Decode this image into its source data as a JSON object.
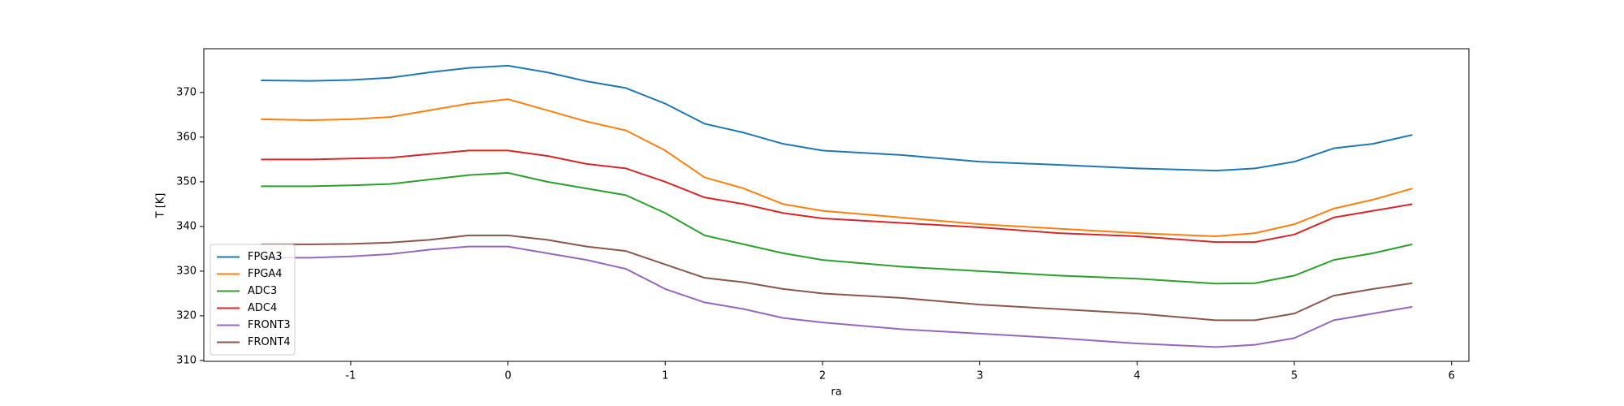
{
  "chart_data": {
    "type": "line",
    "xlabel": "ra",
    "ylabel": "T [K]",
    "x": [
      -1.57,
      -1.25,
      -1,
      -0.75,
      -0.5,
      -0.25,
      0,
      0.25,
      0.5,
      0.75,
      1,
      1.25,
      1.5,
      1.75,
      2,
      2.5,
      3,
      3.5,
      4,
      4.5,
      4.75,
      5,
      5.25,
      5.5,
      5.75
    ],
    "series": [
      {
        "name": "FPGA3",
        "color": "#1f77b4",
        "values": [
          372.7,
          372.6,
          372.8,
          373.3,
          374.5,
          375.5,
          376,
          374.5,
          372.5,
          371,
          367.5,
          363,
          361,
          358.5,
          357,
          356,
          354.5,
          353.8,
          353,
          352.5,
          353,
          354.5,
          357.5,
          358.5,
          360.5
        ]
      },
      {
        "name": "FPGA4",
        "color": "#ff7f0e",
        "values": [
          364,
          363.8,
          364,
          364.5,
          366,
          367.5,
          368.5,
          366,
          363.5,
          361.5,
          357,
          351,
          348.5,
          345,
          343.5,
          342,
          340.5,
          339.5,
          338.5,
          337.8,
          338.5,
          340.5,
          344,
          346,
          348.5
        ]
      },
      {
        "name": "ADC3",
        "color": "#2ca02c",
        "values": [
          349,
          349,
          349.2,
          349.5,
          350.5,
          351.5,
          352,
          350,
          348.5,
          347,
          343,
          338,
          336,
          334,
          332.5,
          331,
          330,
          329,
          328.3,
          327.2,
          327.3,
          329,
          332.5,
          334,
          336
        ]
      },
      {
        "name": "ADC4",
        "color": "#d62728",
        "values": [
          355,
          355,
          355.2,
          355.4,
          356.2,
          357,
          357,
          355.8,
          354,
          353,
          350,
          346.5,
          345,
          343,
          341.8,
          340.8,
          339.8,
          338.5,
          337.8,
          336.5,
          336.5,
          338.2,
          342,
          343.5,
          345
        ]
      },
      {
        "name": "FRONT3",
        "color": "#9467bd",
        "values": [
          333,
          333,
          333.3,
          333.8,
          334.8,
          335.5,
          335.5,
          334,
          332.5,
          330.5,
          326,
          323,
          321.5,
          319.5,
          318.5,
          317,
          316,
          315,
          313.8,
          313,
          313.5,
          315,
          319,
          320.5,
          322
        ]
      },
      {
        "name": "FRONT4",
        "color": "#8c564b",
        "values": [
          336,
          336,
          336.1,
          336.4,
          337,
          338,
          338,
          337,
          335.5,
          334.5,
          331.5,
          328.5,
          327.5,
          326,
          325,
          324,
          322.5,
          321.5,
          320.5,
          319,
          319,
          320.5,
          324.5,
          326,
          327.3
        ]
      }
    ],
    "xlim": [
      -1.934,
      6.11
    ],
    "xticks": [
      -1,
      0,
      1,
      2,
      3,
      4,
      5,
      6
    ],
    "ylim": [
      309.8,
      379.8
    ],
    "yticks": [
      310,
      320,
      330,
      340,
      350,
      360,
      370
    ],
    "grid": false,
    "legend": "lower left"
  }
}
